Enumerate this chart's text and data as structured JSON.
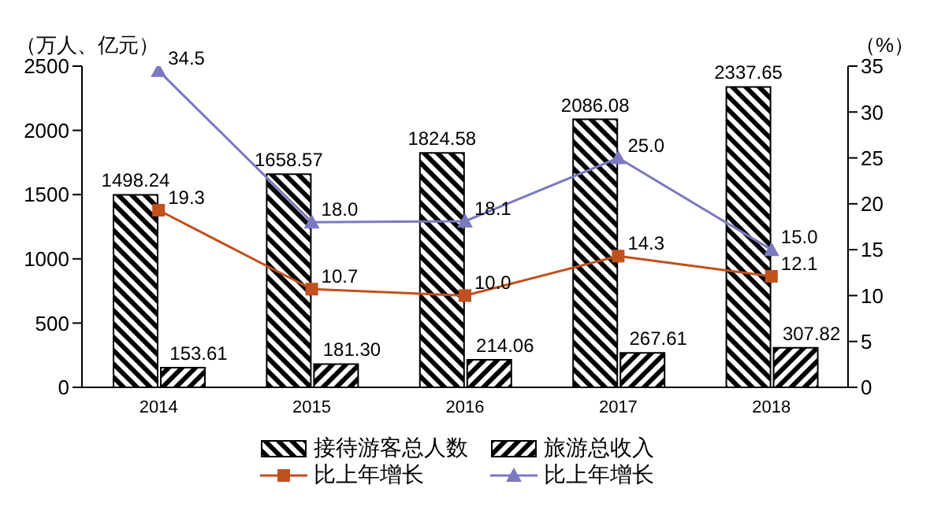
{
  "chart_data": {
    "type": "bar",
    "ylabel": "（万人、亿元）",
    "y2label": "（%）",
    "categories": [
      "2014",
      "2015",
      "2016",
      "2017",
      "2018"
    ],
    "series": [
      {
        "name": "接待游客总人数",
        "color": "#000000",
        "values": [
          1498.24,
          1658.57,
          1824.58,
          2086.08,
          2337.65
        ],
        "value_labels": [
          "1498.24",
          "1658.57",
          "1824.58",
          "2086.08",
          "2337.65"
        ]
      },
      {
        "name": "旅游总收入",
        "color": "#000000",
        "values": [
          153.61,
          181.3,
          214.06,
          267.61,
          307.82
        ],
        "value_labels": [
          "153.61",
          "181.30",
          "214.06",
          "267.61",
          "307.82"
        ]
      },
      {
        "name": "比上年增长",
        "type": "line",
        "axis": "y2",
        "color": "#c0501e",
        "marker": "square",
        "values": [
          19.3,
          10.7,
          10.0,
          14.3,
          12.1
        ],
        "value_labels": [
          "19.3",
          "10.7",
          "10.0",
          "14.3",
          "12.1"
        ]
      },
      {
        "name": "比上年增长",
        "type": "line",
        "axis": "y2",
        "color": "#7b79c0",
        "marker": "triangle",
        "values": [
          34.5,
          18.0,
          18.1,
          25.0,
          15.0
        ],
        "value_labels": [
          "34.5",
          "18.0",
          "18.1",
          "25.0",
          "15.0"
        ]
      }
    ],
    "ylim": [
      0,
      2500
    ],
    "yticks": [
      0,
      500,
      1000,
      1500,
      2000,
      2500
    ],
    "y2lim": [
      0,
      35
    ],
    "y2ticks": [
      0,
      5,
      10,
      15,
      20,
      25,
      30,
      35
    ],
    "legend": "bottom"
  }
}
